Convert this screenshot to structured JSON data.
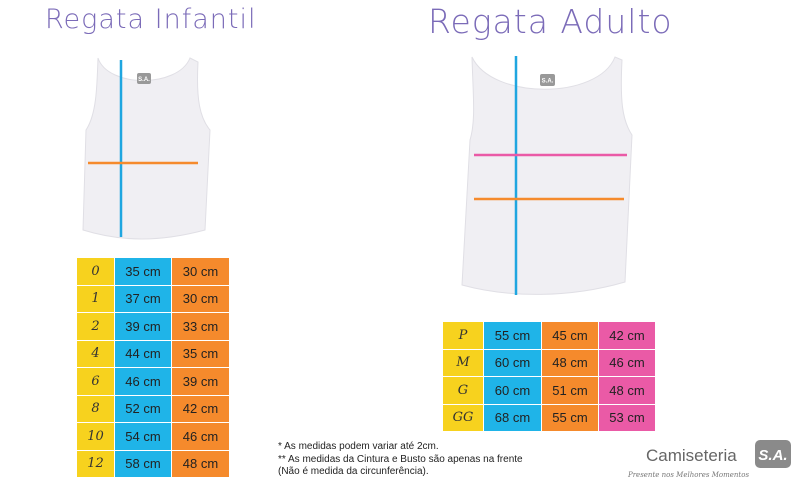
{
  "kids": {
    "title": "Regata Infantil",
    "table": {
      "rows": [
        [
          "0",
          "35 cm",
          "30 cm"
        ],
        [
          "1",
          "37 cm",
          "30 cm"
        ],
        [
          "2",
          "39 cm",
          "33 cm"
        ],
        [
          "4",
          "44 cm",
          "35 cm"
        ],
        [
          "6",
          "46 cm",
          "39 cm"
        ],
        [
          "8",
          "52 cm",
          "42 cm"
        ],
        [
          "10",
          "54 cm",
          "46 cm"
        ],
        [
          "12",
          "58 cm",
          "48 cm"
        ]
      ]
    }
  },
  "adult": {
    "title": "Regata Adulto",
    "table": {
      "rows": [
        [
          "P",
          "55 cm",
          "45 cm",
          "42 cm"
        ],
        [
          "M",
          "60 cm",
          "48 cm",
          "46 cm"
        ],
        [
          "G",
          "60 cm",
          "51 cm",
          "48 cm"
        ],
        [
          "GG",
          "68 cm",
          "55 cm",
          "53 cm"
        ]
      ]
    }
  },
  "shirt_badge": "S.A.",
  "notes": [
    "* As medidas podem variar até 2cm.",
    "** As medidas da Cintura e Busto são apenas na frente (Não é medida da circunferência)."
  ],
  "logo": {
    "name": "Camiseteria",
    "badge": "S.A.",
    "tagline": "Presente nos Melhores Momentos"
  }
}
